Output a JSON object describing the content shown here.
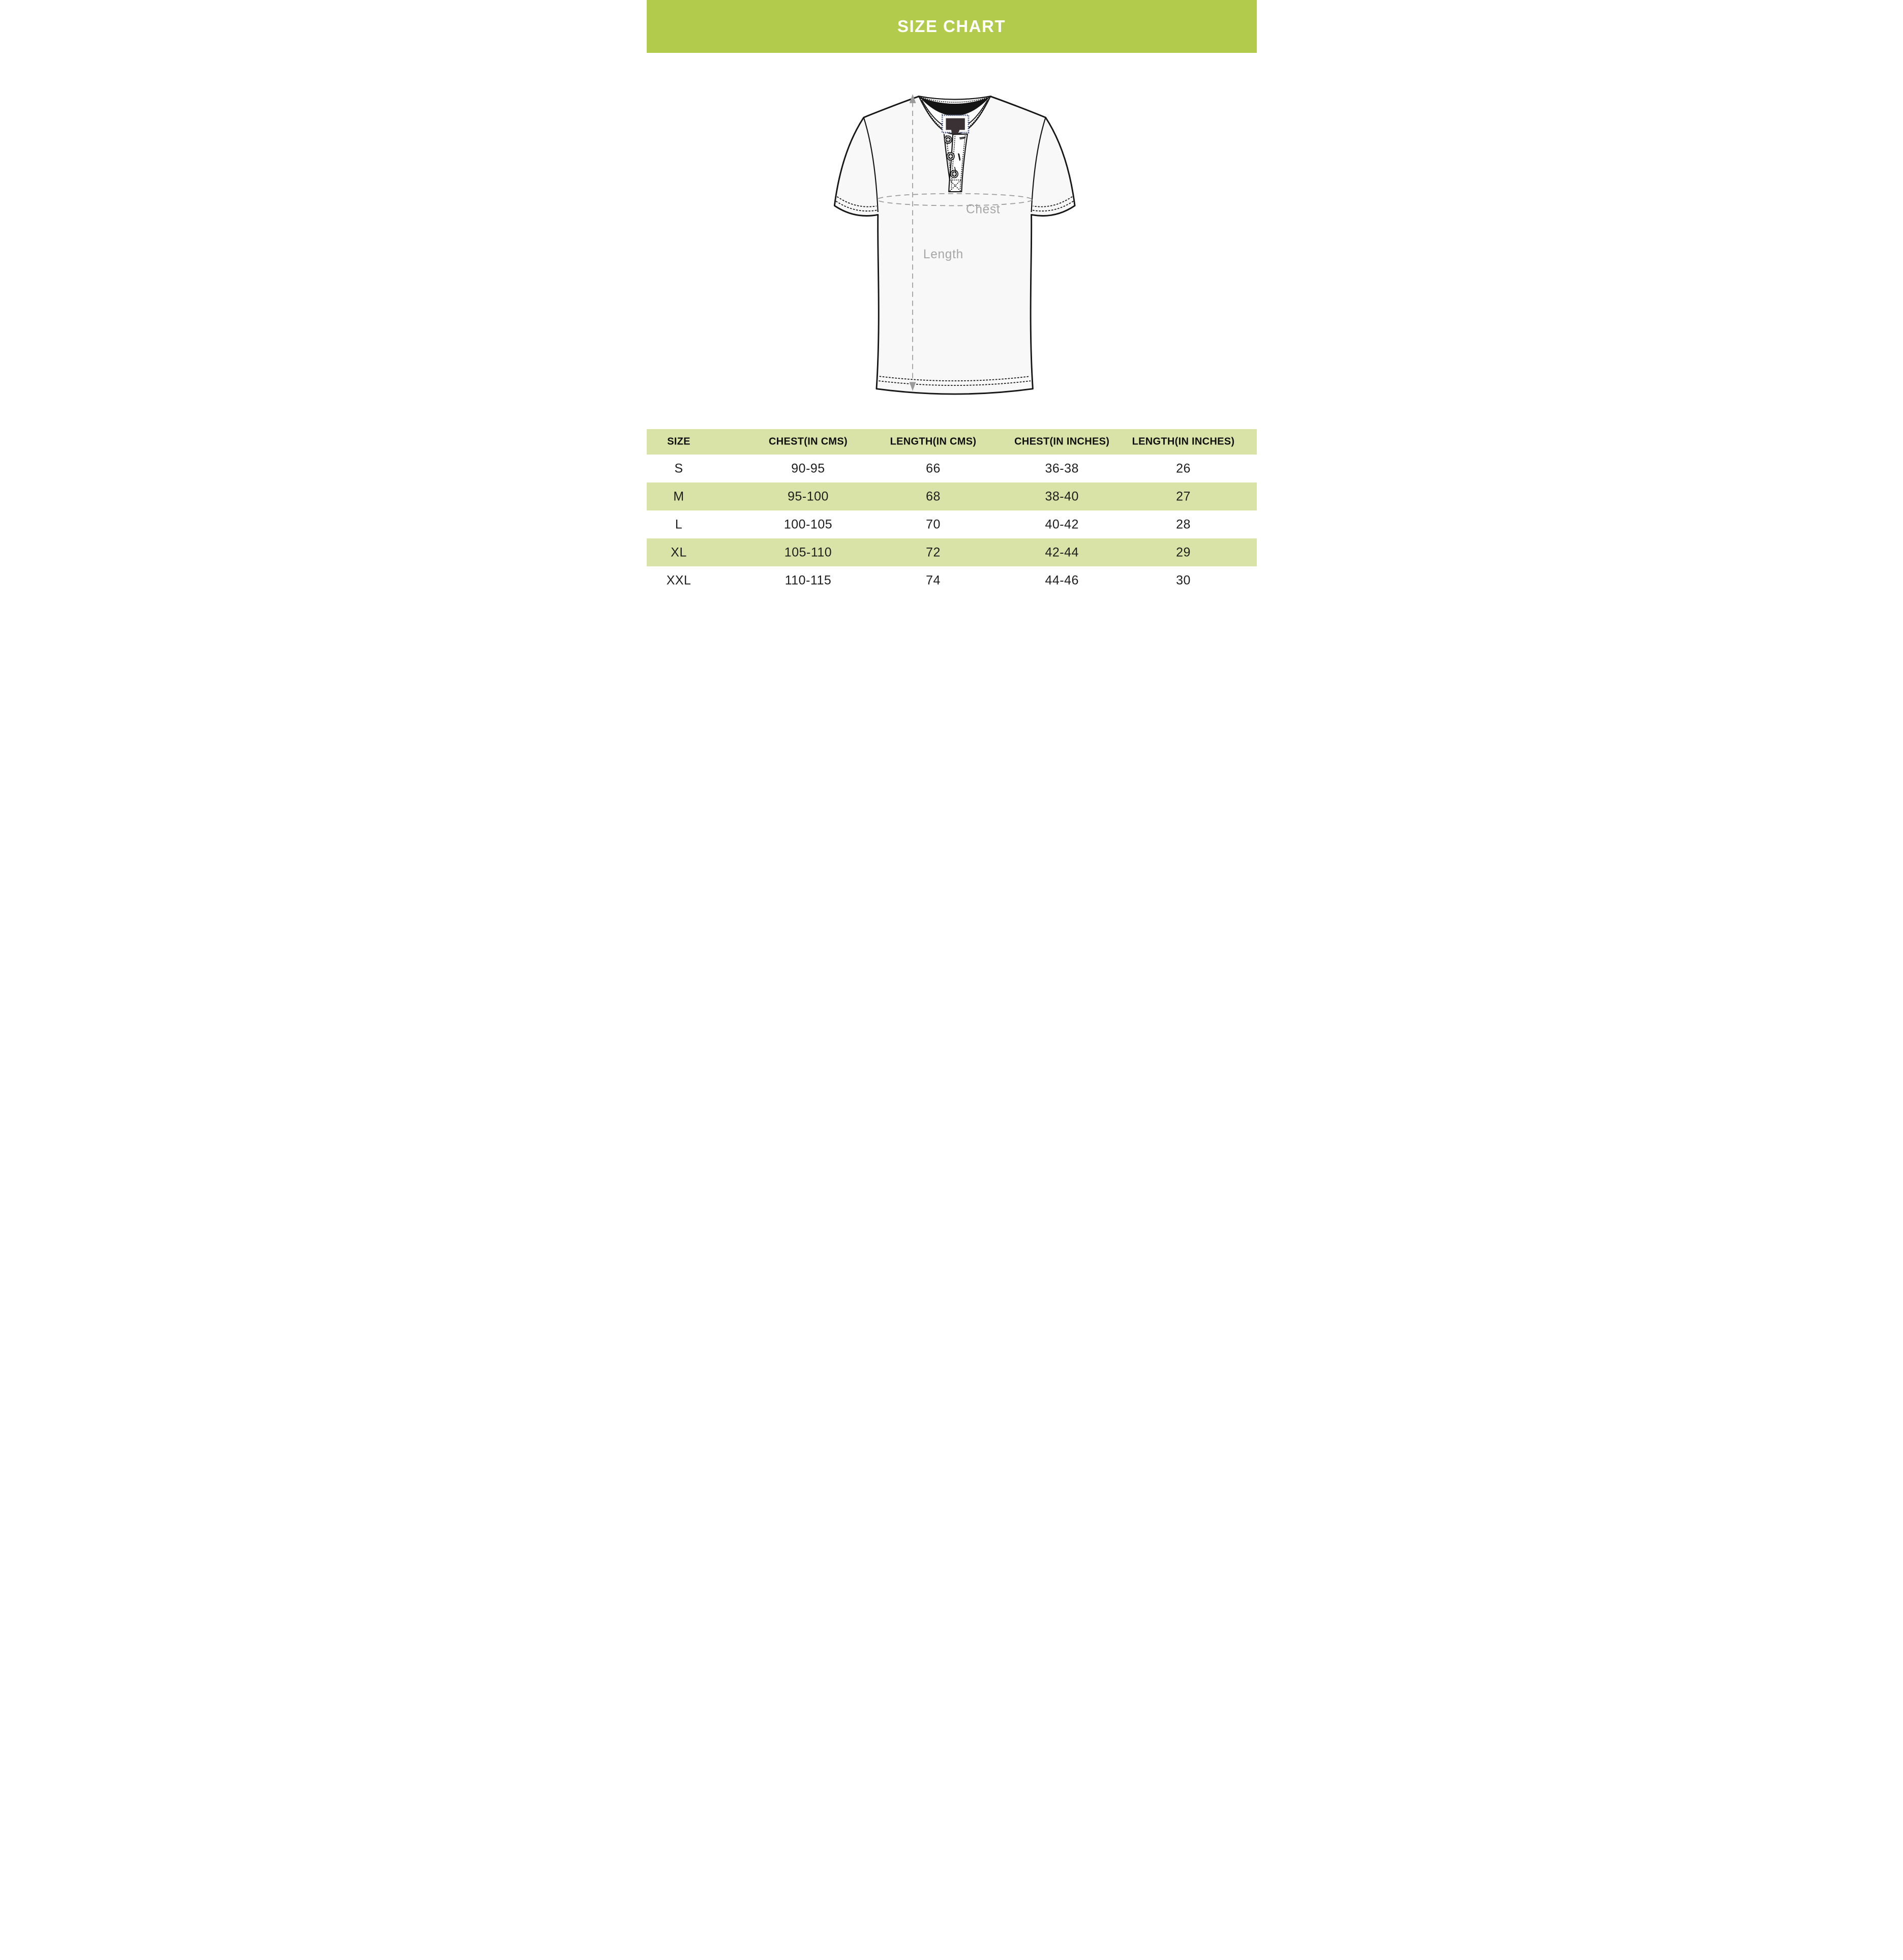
{
  "banner": {
    "title": "SIZE CHART",
    "bg_color": "#b3cb4d",
    "text_color": "#ffffff"
  },
  "diagram": {
    "chest_label": "Chest",
    "length_label": "Length",
    "guide_color": "#9b9b9b",
    "guide_text_color": "#a6a6a6",
    "label_patch_color": "#393134",
    "label_patch_stitch_color": "#46517b"
  },
  "table": {
    "header_bg": "#d9e3a7",
    "alt_row_bg": "#d9e3a7",
    "columns": [
      "SIZE",
      "CHEST(IN CMS)",
      "LENGTH(IN CMS)",
      "CHEST(IN INCHES)",
      "LENGTH(IN INCHES)"
    ],
    "rows": [
      [
        "S",
        "90-95",
        "66",
        "36-38",
        "26"
      ],
      [
        "M",
        "95-100",
        "68",
        "38-40",
        "27"
      ],
      [
        "L",
        "100-105",
        "70",
        "40-42",
        "28"
      ],
      [
        "XL",
        "105-110",
        "72",
        "42-44",
        "29"
      ],
      [
        "XXL",
        "110-115",
        "74",
        "44-46",
        "30"
      ]
    ]
  },
  "chart_data": {
    "type": "table",
    "title": "SIZE CHART",
    "columns": [
      "SIZE",
      "CHEST(IN CMS)",
      "LENGTH(IN CMS)",
      "CHEST(IN INCHES)",
      "LENGTH(IN INCHES)"
    ],
    "rows": [
      [
        "S",
        "90-95",
        "66",
        "36-38",
        "26"
      ],
      [
        "M",
        "95-100",
        "68",
        "38-40",
        "27"
      ],
      [
        "L",
        "100-105",
        "70",
        "40-42",
        "28"
      ],
      [
        "XL",
        "105-110",
        "72",
        "42-44",
        "29"
      ],
      [
        "XXL",
        "110-115",
        "74",
        "44-46",
        "30"
      ]
    ]
  }
}
